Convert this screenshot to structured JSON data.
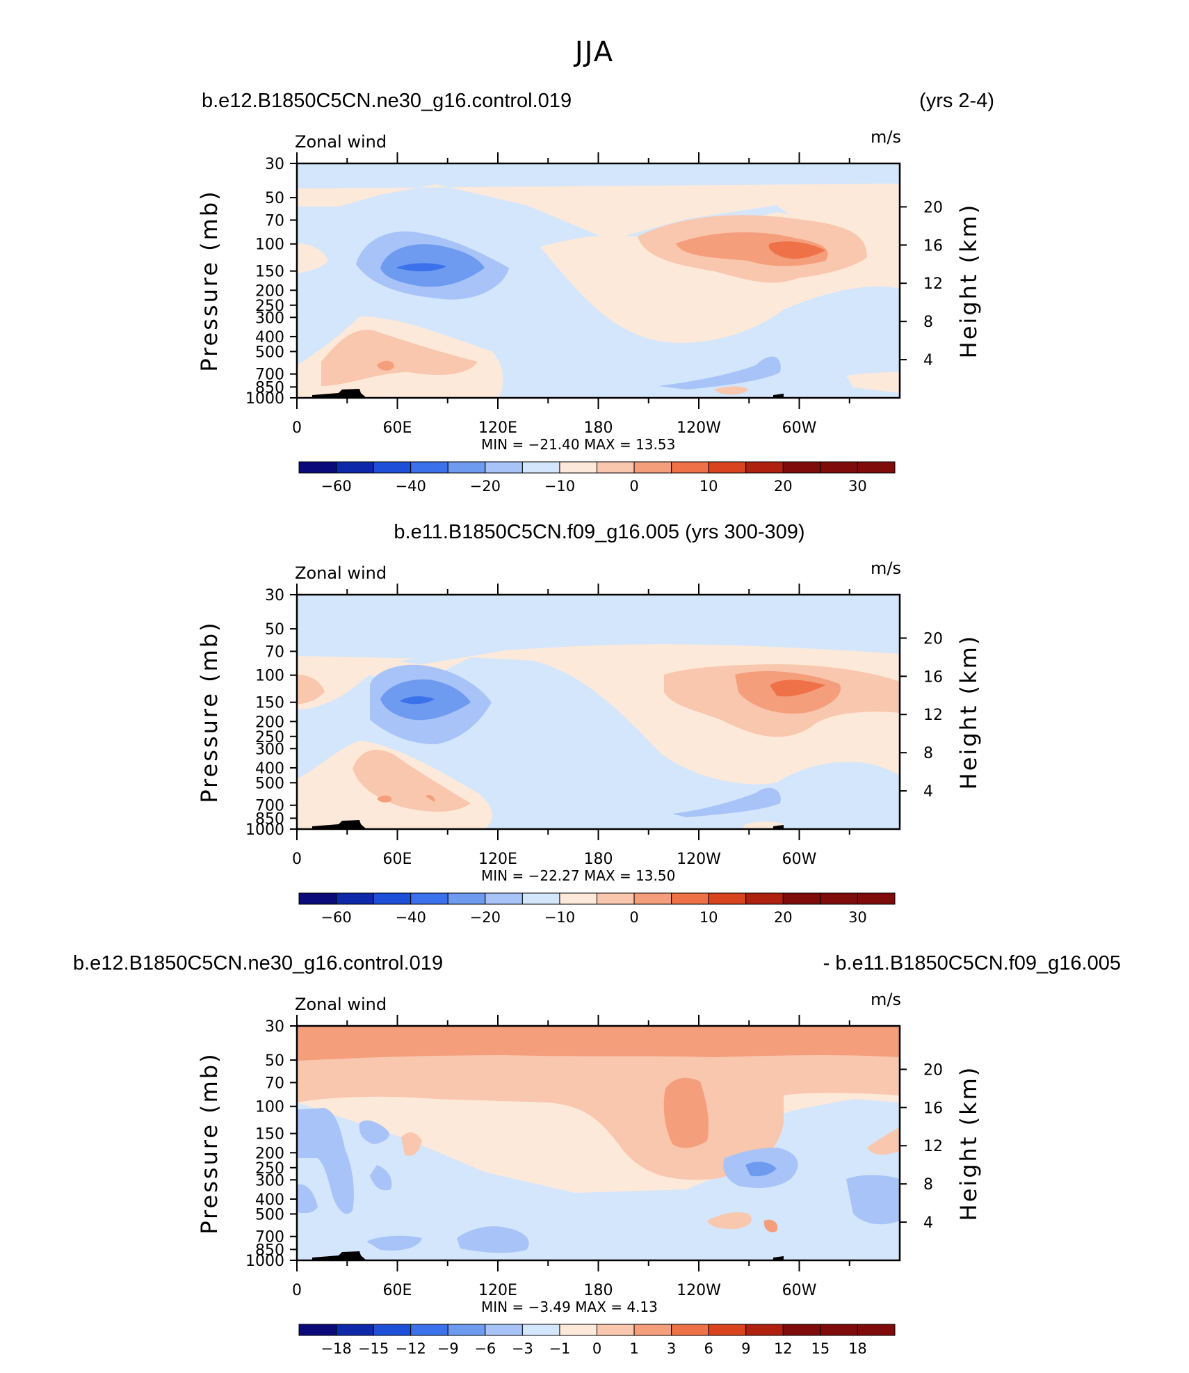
{
  "page_title": "JJA",
  "common": {
    "left_label": "Zonal wind",
    "right_label": "m/s",
    "y_left_title": "Pressure (mb)",
    "y_right_title": "Height (km)",
    "pressure_ticks": [
      "30",
      "50",
      "70",
      "100",
      "150",
      "200",
      "250",
      "300",
      "400",
      "500",
      "700",
      "850",
      "1000"
    ],
    "pressure_values": [
      30,
      50,
      70,
      100,
      150,
      200,
      250,
      300,
      400,
      500,
      700,
      850,
      1000
    ],
    "height_ticks": [
      "20",
      "16",
      "12",
      "8",
      "4"
    ],
    "height_values": [
      20,
      16,
      12,
      8,
      4
    ],
    "x_ticks": [
      "0",
      "60E",
      "120E",
      "180",
      "120W",
      "60W"
    ],
    "x_tick_longitudes": [
      0,
      60,
      120,
      180,
      240,
      300
    ]
  },
  "colors": {
    "palette": [
      "#0a0a7a",
      "#0d28a8",
      "#1d4fd8",
      "#3b71ea",
      "#6e9af0",
      "#a7c3f8",
      "#d4e6fb",
      "#fde9d9",
      "#f9c6ae",
      "#f59e7c",
      "#ee7148",
      "#d9431e",
      "#b0200f",
      "#7f0b0b"
    ]
  },
  "chart_data": [
    {
      "type": "contour",
      "title_left": "b.e12.B1850C5CN.ne30_g16.control.019",
      "title_right": "(yrs 2-4)",
      "stats": {
        "min_label": "MIN =",
        "min": "−21.40",
        "max_label": "MAX =",
        "max": "13.53"
      },
      "colorbar_labels": [
        "−60",
        "−40",
        "−20",
        "−10",
        "0",
        "10",
        "20",
        "30"
      ],
      "colorbar_label_slots": [
        1,
        3,
        5,
        7,
        9,
        11,
        13,
        15
      ],
      "colorbar_levels": [
        -70,
        -60,
        -50,
        -40,
        -30,
        -20,
        -10,
        -5,
        0,
        5,
        10,
        15,
        20,
        25,
        30,
        35
      ],
      "min": -21.4,
      "max": 13.53,
      "features": [
        {
          "lon": 82,
          "lev": 150,
          "value": -21.4
        },
        {
          "lon": 300,
          "lev": 150,
          "value": 13.5
        },
        {
          "lon": 90,
          "lev": 550,
          "value": 6
        },
        {
          "lon": 0,
          "lev": 150,
          "value": 5
        },
        {
          "lon": 180,
          "lev": 40,
          "value": -3
        }
      ]
    },
    {
      "type": "contour",
      "title_left": "b.e11.B1850C5CN.f09_g16.005 (yrs 300-309)",
      "title_right": "",
      "stats": {
        "min_label": "MIN =",
        "min": "−22.27",
        "max_label": "MAX =",
        "max": "13.50"
      },
      "colorbar_labels": [
        "−60",
        "−40",
        "−20",
        "−10",
        "0",
        "10",
        "20",
        "30"
      ],
      "colorbar_label_slots": [
        1,
        3,
        5,
        7,
        9,
        11,
        13,
        15
      ],
      "colorbar_levels": [
        -70,
        -60,
        -50,
        -40,
        -30,
        -20,
        -10,
        -5,
        0,
        5,
        10,
        15,
        20,
        25,
        30,
        35
      ],
      "min": -22.27,
      "max": 13.5,
      "features": [
        {
          "lon": 75,
          "lev": 150,
          "value": -22.27
        },
        {
          "lon": 300,
          "lev": 150,
          "value": 13.5
        },
        {
          "lon": 90,
          "lev": 550,
          "value": 6
        },
        {
          "lon": 0,
          "lev": 150,
          "value": 4
        },
        {
          "lon": 180,
          "lev": 40,
          "value": -4
        }
      ]
    },
    {
      "type": "contour",
      "title_left": "b.e12.B1850C5CN.ne30_g16.control.019",
      "title_right": "- b.e11.B1850C5CN.f09_g16.005",
      "stats": {
        "min_label": "MIN =",
        "min": "−3.49",
        "max_label": "MAX =",
        "max": "4.13"
      },
      "colorbar_labels": [
        "−18",
        "−15",
        "−12",
        "−9",
        "−6",
        "−3",
        "−1",
        "0",
        "1",
        "3",
        "6",
        "9",
        "12",
        "15",
        "18"
      ],
      "colorbar_label_slots": [
        1,
        2,
        3,
        4,
        5,
        6,
        7,
        8,
        9,
        10,
        11,
        12,
        13,
        14,
        15
      ],
      "colorbar_levels": [
        -18,
        -15,
        -12,
        -9,
        -6,
        -3,
        -1,
        0,
        1,
        3,
        6,
        9,
        12,
        15,
        18
      ],
      "min": -3.49,
      "max": 4.13,
      "features": [
        {
          "lon": 200,
          "lev": 40,
          "value": 3.5
        },
        {
          "lon": 236,
          "lev": 160,
          "value": 4.13
        },
        {
          "lon": 150,
          "lev": 800,
          "value": -3.49
        },
        {
          "lon": 285,
          "lev": 250,
          "value": -3
        }
      ]
    }
  ]
}
